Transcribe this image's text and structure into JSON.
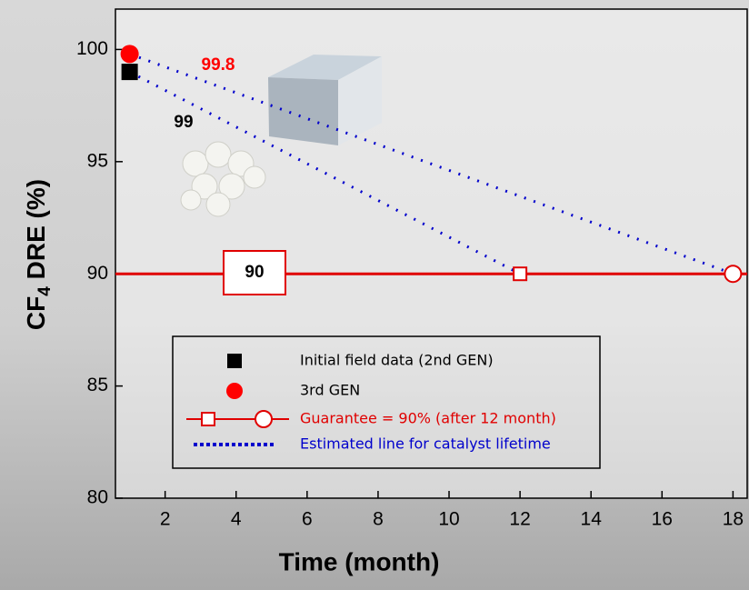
{
  "chart_data": {
    "type": "line",
    "xlabel": "Time (month)",
    "ylabel": [
      "CF",
      "4",
      " DRE (%)"
    ],
    "xlim": [
      0.6,
      18.4
    ],
    "ylim": [
      80,
      101.8
    ],
    "xticks": [
      2,
      4,
      6,
      8,
      10,
      12,
      14,
      16,
      18
    ],
    "yticks": [
      80,
      85,
      90,
      95,
      100
    ],
    "series": [
      {
        "name": "Initial field data (2nd GEN)",
        "color": "#000000",
        "marker": "square",
        "x": [
          1
        ],
        "values": [
          99
        ]
      },
      {
        "name": "3rd GEN",
        "color": "#ff0000",
        "marker": "circle",
        "x": [
          1
        ],
        "values": [
          99.8
        ]
      },
      {
        "name": "Guarantee = 90% (after 12 month)",
        "color": "#e00000",
        "marker": "open",
        "x": [
          12,
          18
        ],
        "values": [
          90,
          90
        ]
      },
      {
        "name": "Estimated line for catalyst lifetime",
        "color": "#0000cc",
        "dotted": true,
        "lines": [
          {
            "x": [
              1,
              12
            ],
            "values": [
              99,
              90
            ]
          },
          {
            "x": [
              1,
              18
            ],
            "values": [
              99.8,
              90
            ]
          }
        ]
      }
    ],
    "annotations": [
      {
        "text": "99.8",
        "color": "#ff0000"
      },
      {
        "text": "99",
        "color": "#000000"
      },
      {
        "text": "90",
        "color": "#000000",
        "boxed": true
      }
    ]
  }
}
